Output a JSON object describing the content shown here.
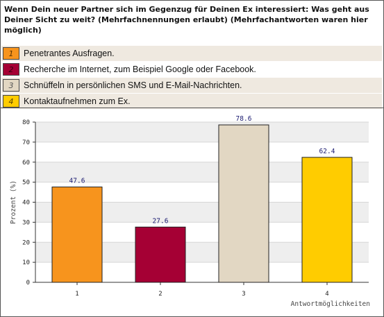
{
  "question": "Wenn Dein neuer Partner sich im Gegenzug für Deinen Ex interessiert: Was geht aus Deiner Sicht zu weit? (Mehrfachnennungen erlaubt) (Mehrfachantworten waren hier möglich)",
  "options": [
    {
      "num": "1",
      "label": "Penetrantes Ausfragen.",
      "color": "#f7941d"
    },
    {
      "num": "2",
      "label": "Recherche im Internet, zum Beispiel Google oder Facebook.",
      "color": "#a50034"
    },
    {
      "num": "3",
      "label": "Schnüffeln in persönlichen SMS und E-Mail-Nachrichten.",
      "color": "#e2d7c3"
    },
    {
      "num": "4",
      "label": "Kontaktaufnehmen zum Ex.",
      "color": "#ffcc00"
    }
  ],
  "chart_data": {
    "type": "bar",
    "categories": [
      "1",
      "2",
      "3",
      "4"
    ],
    "values": [
      47.6,
      27.6,
      78.6,
      62.4
    ],
    "value_labels": [
      "47.6",
      "27.6",
      "78.6",
      "62.4"
    ],
    "colors": [
      "#f7941d",
      "#a50034",
      "#e2d7c3",
      "#ffcc00"
    ],
    "ylabel": "Prozent (%)",
    "xlabel": "Antwortmöglichkeiten",
    "ylim": [
      0,
      80
    ],
    "yticks": [
      "0",
      "10",
      "20",
      "30",
      "40",
      "50",
      "60",
      "70",
      "80"
    ],
    "grid": true
  }
}
